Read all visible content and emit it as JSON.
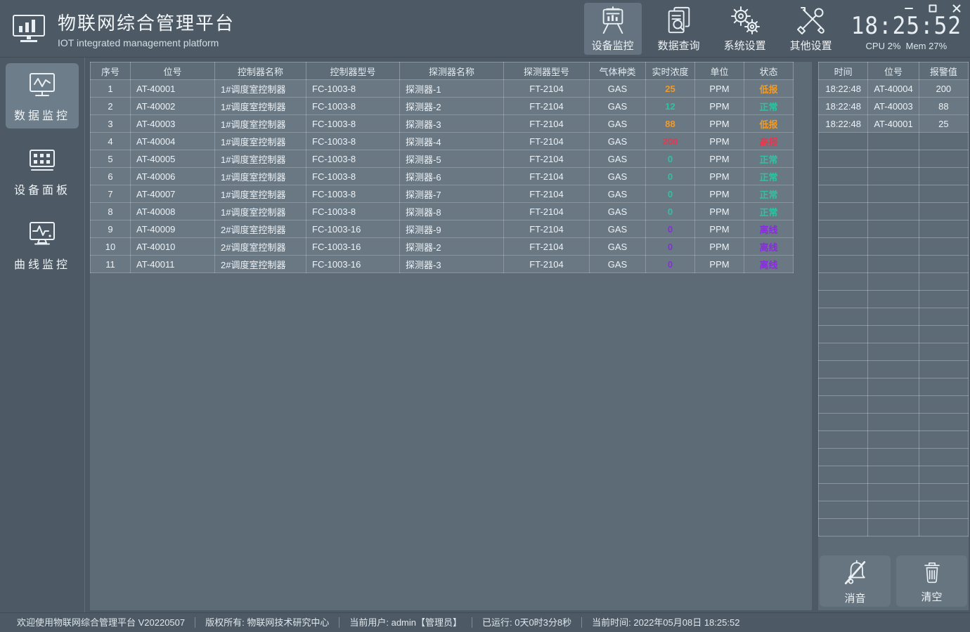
{
  "app": {
    "title": "物联网综合管理平台",
    "subtitle": "IOT integrated management platform"
  },
  "window_controls": {
    "minimize": "minimize",
    "maximize": "maximize",
    "close": "close"
  },
  "toolbar": {
    "items": [
      {
        "id": "device-monitor",
        "label": "设备监控",
        "icon": "device-monitor-icon",
        "active": true
      },
      {
        "id": "data-query",
        "label": "数据查询",
        "icon": "data-query-icon",
        "active": false
      },
      {
        "id": "system-settings",
        "label": "系统设置",
        "icon": "system-settings-icon",
        "active": false
      },
      {
        "id": "other-settings",
        "label": "其他设置",
        "icon": "other-settings-icon",
        "active": false
      }
    ],
    "clock": "18:25:52",
    "cpu_mem": "CPU 2%  Mem 27%"
  },
  "sidebar": {
    "items": [
      {
        "id": "data-monitor",
        "label": "数据监控",
        "icon": "data-monitor-icon",
        "active": true
      },
      {
        "id": "device-panel",
        "label": "设备面板",
        "icon": "device-panel-icon",
        "active": false
      },
      {
        "id": "curve-monitor",
        "label": "曲线监控",
        "icon": "curve-monitor-icon",
        "active": false
      }
    ]
  },
  "main_table": {
    "headers": [
      "序号",
      "位号",
      "控制器名称",
      "控制器型号",
      "探测器名称",
      "探测器型号",
      "气体种类",
      "实时浓度",
      "单位",
      "状态"
    ],
    "rows": [
      {
        "seq": "1",
        "tag": "AT-40001",
        "controller_name": "1#调度室控制器",
        "controller_model": "FC-1003-8",
        "detector_name": "探测器-1",
        "detector_model": "FT-2104",
        "gas": "GAS",
        "value": "25",
        "unit": "PPM",
        "status": "低报",
        "state": "low"
      },
      {
        "seq": "2",
        "tag": "AT-40002",
        "controller_name": "1#调度室控制器",
        "controller_model": "FC-1003-8",
        "detector_name": "探测器-2",
        "detector_model": "FT-2104",
        "gas": "GAS",
        "value": "12",
        "unit": "PPM",
        "status": "正常",
        "state": "normal"
      },
      {
        "seq": "3",
        "tag": "AT-40003",
        "controller_name": "1#调度室控制器",
        "controller_model": "FC-1003-8",
        "detector_name": "探测器-3",
        "detector_model": "FT-2104",
        "gas": "GAS",
        "value": "88",
        "unit": "PPM",
        "status": "低报",
        "state": "low"
      },
      {
        "seq": "4",
        "tag": "AT-40004",
        "controller_name": "1#调度室控制器",
        "controller_model": "FC-1003-8",
        "detector_name": "探测器-4",
        "detector_model": "FT-2104",
        "gas": "GAS",
        "value": "200",
        "unit": "PPM",
        "status": "高报",
        "state": "high"
      },
      {
        "seq": "5",
        "tag": "AT-40005",
        "controller_name": "1#调度室控制器",
        "controller_model": "FC-1003-8",
        "detector_name": "探测器-5",
        "detector_model": "FT-2104",
        "gas": "GAS",
        "value": "0",
        "unit": "PPM",
        "status": "正常",
        "state": "normal"
      },
      {
        "seq": "6",
        "tag": "AT-40006",
        "controller_name": "1#调度室控制器",
        "controller_model": "FC-1003-8",
        "detector_name": "探测器-6",
        "detector_model": "FT-2104",
        "gas": "GAS",
        "value": "0",
        "unit": "PPM",
        "status": "正常",
        "state": "normal"
      },
      {
        "seq": "7",
        "tag": "AT-40007",
        "controller_name": "1#调度室控制器",
        "controller_model": "FC-1003-8",
        "detector_name": "探测器-7",
        "detector_model": "FT-2104",
        "gas": "GAS",
        "value": "0",
        "unit": "PPM",
        "status": "正常",
        "state": "normal"
      },
      {
        "seq": "8",
        "tag": "AT-40008",
        "controller_name": "1#调度室控制器",
        "controller_model": "FC-1003-8",
        "detector_name": "探测器-8",
        "detector_model": "FT-2104",
        "gas": "GAS",
        "value": "0",
        "unit": "PPM",
        "status": "正常",
        "state": "normal"
      },
      {
        "seq": "9",
        "tag": "AT-40009",
        "controller_name": "2#调度室控制器",
        "controller_model": "FC-1003-16",
        "detector_name": "探测器-9",
        "detector_model": "FT-2104",
        "gas": "GAS",
        "value": "0",
        "unit": "PPM",
        "status": "离线",
        "state": "offline"
      },
      {
        "seq": "10",
        "tag": "AT-40010",
        "controller_name": "2#调度室控制器",
        "controller_model": "FC-1003-16",
        "detector_name": "探测器-2",
        "detector_model": "FT-2104",
        "gas": "GAS",
        "value": "0",
        "unit": "PPM",
        "status": "离线",
        "state": "offline"
      },
      {
        "seq": "11",
        "tag": "AT-40011",
        "controller_name": "2#调度室控制器",
        "controller_model": "FC-1003-16",
        "detector_name": "探测器-3",
        "detector_model": "FT-2104",
        "gas": "GAS",
        "value": "0",
        "unit": "PPM",
        "status": "离线",
        "state": "offline"
      }
    ]
  },
  "alarm_table": {
    "headers": [
      "时间",
      "位号",
      "报警值"
    ],
    "rows": [
      {
        "time": "18:22:48",
        "tag": "AT-40004",
        "value": "200"
      },
      {
        "time": "18:22:48",
        "tag": "AT-40003",
        "value": "88"
      },
      {
        "time": "18:22:48",
        "tag": "AT-40001",
        "value": "25"
      }
    ],
    "empty_rows": 23
  },
  "actions": {
    "mute": "消音",
    "clear": "清空"
  },
  "statusbar": {
    "items": [
      "欢迎使用物联网综合管理平台 V20220507",
      "版权所有: 物联网技术研究中心",
      "当前用户: admin【管理员】",
      "已运行: 0天0时3分8秒",
      "当前时间: 2022年05月08日 18:25:52"
    ]
  },
  "colors": {
    "low": "#f29a26",
    "normal": "#2bc4a2",
    "high": "#e3394e",
    "offline": "#8a2be2"
  }
}
